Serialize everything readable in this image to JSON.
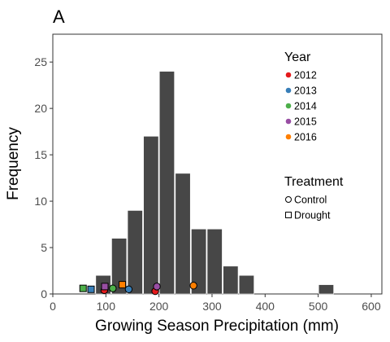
{
  "chart_data": {
    "type": "bar",
    "panel_label": "A",
    "xlabel": "Growing Season Precipitation (mm)",
    "ylabel": "Frequency",
    "xlim": [
      0,
      620
    ],
    "ylim": [
      0,
      28
    ],
    "x_ticks": [
      0,
      100,
      200,
      300,
      400,
      500,
      600
    ],
    "y_ticks": [
      0,
      5,
      10,
      15,
      20,
      25
    ],
    "grid": false,
    "bar_color": "#474747",
    "bar_edge_color": "#ffffff",
    "histogram": [
      {
        "x0": 80,
        "x1": 110,
        "count": 2
      },
      {
        "x0": 110,
        "x1": 140,
        "count": 6
      },
      {
        "x0": 140,
        "x1": 170,
        "count": 9
      },
      {
        "x0": 170,
        "x1": 200,
        "count": 17
      },
      {
        "x0": 200,
        "x1": 230,
        "count": 24
      },
      {
        "x0": 230,
        "x1": 260,
        "count": 13
      },
      {
        "x0": 260,
        "x1": 290,
        "count": 7
      },
      {
        "x0": 290,
        "x1": 320,
        "count": 7
      },
      {
        "x0": 320,
        "x1": 350,
        "count": 3
      },
      {
        "x0": 350,
        "x1": 380,
        "count": 2
      },
      {
        "x0": 500,
        "x1": 530,
        "count": 1
      }
    ],
    "points": [
      {
        "year": "2014",
        "treatment": "Drought",
        "x": 57,
        "y": 0.6
      },
      {
        "year": "2013",
        "treatment": "Drought",
        "x": 72,
        "y": 0.5
      },
      {
        "year": "2012",
        "treatment": "Control",
        "x": 97,
        "y": 0.4
      },
      {
        "year": "2015",
        "treatment": "Drought",
        "x": 98,
        "y": 0.8
      },
      {
        "year": "2014",
        "treatment": "Control",
        "x": 113,
        "y": 0.6
      },
      {
        "year": "2016",
        "treatment": "Drought",
        "x": 131,
        "y": 1.0
      },
      {
        "year": "2013",
        "treatment": "Control",
        "x": 143,
        "y": 0.5
      },
      {
        "year": "2012",
        "treatment": "Control",
        "x": 193,
        "y": 0.3
      },
      {
        "year": "2015",
        "treatment": "Control",
        "x": 196,
        "y": 0.8
      },
      {
        "year": "2016",
        "treatment": "Control",
        "x": 265,
        "y": 0.9
      }
    ],
    "legend_year": {
      "title": "Year",
      "placement": "top-right",
      "entries": [
        {
          "label": "2012",
          "color": "#e41a1c"
        },
        {
          "label": "2013",
          "color": "#377eb8"
        },
        {
          "label": "2014",
          "color": "#4daf4a"
        },
        {
          "label": "2015",
          "color": "#984ea3"
        },
        {
          "label": "2016",
          "color": "#ff7f00"
        }
      ]
    },
    "legend_treatment": {
      "title": "Treatment",
      "placement": "right",
      "entries": [
        {
          "label": "Control",
          "shape": "circle"
        },
        {
          "label": "Drought",
          "shape": "square"
        }
      ]
    }
  }
}
